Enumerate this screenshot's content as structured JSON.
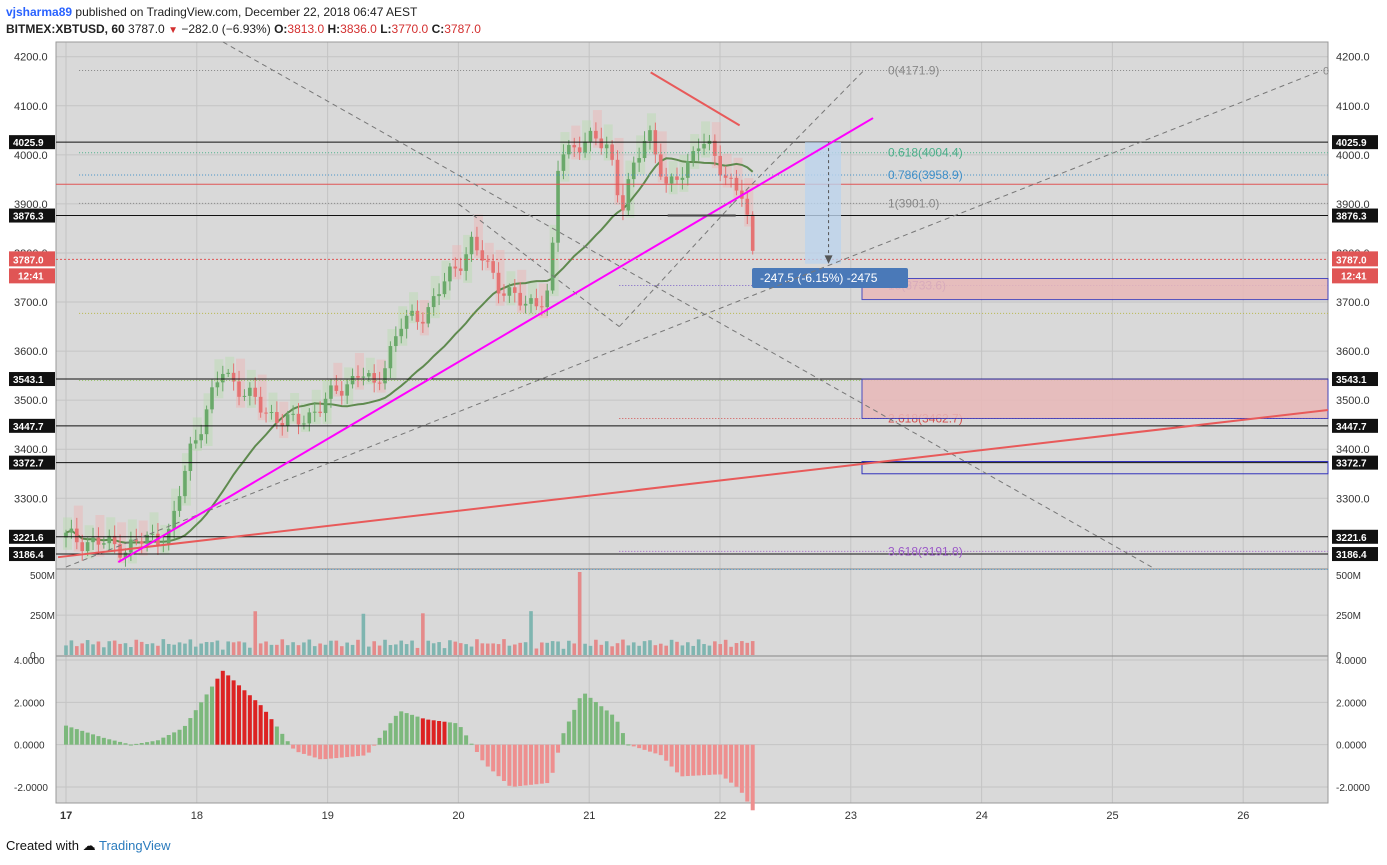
{
  "header": {
    "user": "vjsharma89",
    "published": "published on TradingView.com, December 22, 2018 06:47 AEST",
    "symbol": "BITMEX:XBTUSD, 60",
    "last": "3787.0",
    "change": "−282.0 (−6.93%)",
    "o_label": "O:",
    "o": "3813.0",
    "h_label": "H:",
    "h": "3836.0",
    "l_label": "L:",
    "l": "3770.0",
    "c_label": "C:",
    "c": "3787.0"
  },
  "footer": {
    "created": "Created with",
    "brand": "TradingView"
  },
  "colors": {
    "bg": "#d9d9d9",
    "up": "#6aa96a",
    "down": "#e57373",
    "magenta": "#ff00ff",
    "trend": "#e85a5a",
    "ma": "#5f8a4f",
    "box": "#3333bb",
    "mh_up": "#7cb87c",
    "mh_down": "#e05555"
  },
  "chart_data": [
    {
      "type": "candlestick",
      "title": "BITMEX:XBTUSD, 60",
      "x_ticks": [
        "17",
        "18",
        "19",
        "20",
        "21",
        "22",
        "23",
        "24",
        "25",
        "26"
      ],
      "y_ticks": [
        "3300.0",
        "3400.0",
        "3500.0",
        "3600.0",
        "3700.0",
        "3800.0",
        "3900.0",
        "4000.0",
        "4100.0",
        "4200.0"
      ],
      "ylim": [
        3160,
        4230
      ],
      "xlim": [
        16.97,
        26.65
      ],
      "ohlc_daily_approx": [
        {
          "day": "17",
          "open": 3220,
          "high": 3250,
          "low": 3190,
          "close": 3210
        },
        {
          "day": "18",
          "open": 3210,
          "high": 3590,
          "low": 3200,
          "close": 3500
        },
        {
          "day": "19",
          "open": 3500,
          "high": 3690,
          "low": 3440,
          "close": 3680
        },
        {
          "day": "20",
          "open": 3680,
          "high": 3920,
          "low": 3650,
          "close": 3690
        },
        {
          "day": "21",
          "open": 3690,
          "high": 4170,
          "low": 3690,
          "close": 3900
        },
        {
          "day": "22",
          "open": 3900,
          "high": 4100,
          "low": 3770,
          "close": 3787
        }
      ],
      "horizontal_levels": [
        {
          "price": "4025.9",
          "label": "4025.9"
        },
        {
          "price": "3876.3",
          "label": "3876.3"
        },
        {
          "price": "3543.1",
          "label": "3543.1"
        },
        {
          "price": "3447.7",
          "label": "3447.7"
        },
        {
          "price": "3372.7",
          "label": "3372.7"
        },
        {
          "price": "3221.6",
          "label": "3221.6"
        },
        {
          "price": "3186.4",
          "label": "3186.4"
        }
      ],
      "last_price_label": "3787.0",
      "countdown": "12:41",
      "fib_levels": [
        {
          "label": "0(4171.9)",
          "price": 4171.9
        },
        {
          "label": "0.618(4004.4)",
          "price": 4004.4
        },
        {
          "label": "0.786(3958.9)",
          "price": 3958.9
        },
        {
          "label": "1(3901.0)",
          "price": 3901.0
        },
        {
          "label": "18(3733.6)",
          "price": 3733.6
        },
        {
          "label": "2.618(3462.7)",
          "price": 3462.7
        },
        {
          "label": "3.618(3191.8)",
          "price": 3191.8
        }
      ],
      "fib_right_label": "0",
      "measure_label": "-247.5 (-6.15%) -2475"
    },
    {
      "type": "bar",
      "title": "Volume",
      "y_ticks": [
        "0",
        "250M",
        "500M"
      ],
      "ylim": [
        0,
        520
      ]
    },
    {
      "type": "bar",
      "title": "Momentum",
      "y_ticks": [
        "-2.0000",
        "0.0000",
        "2.0000",
        "4.0000"
      ],
      "ylim": [
        -3.2,
        4.1
      ]
    }
  ]
}
